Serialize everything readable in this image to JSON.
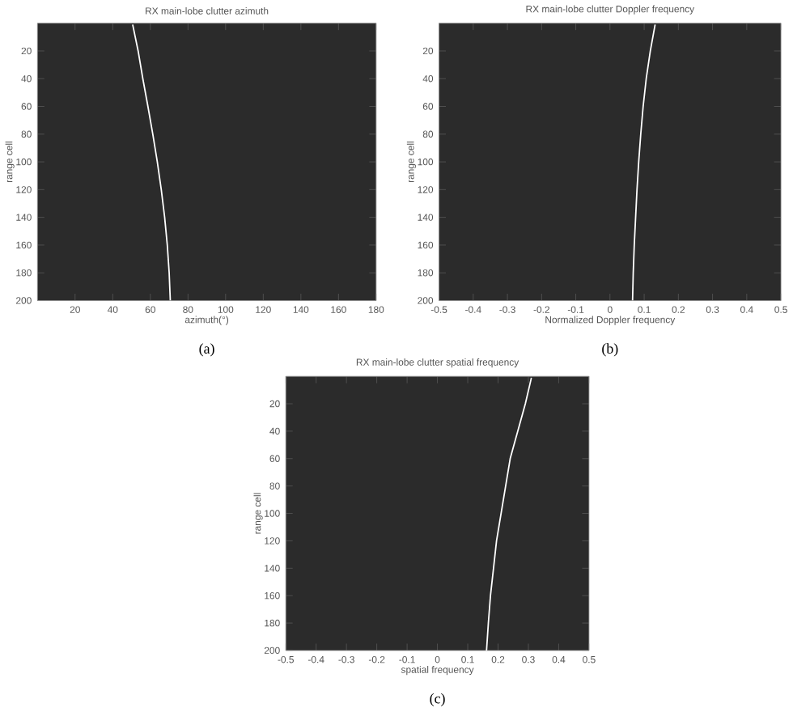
{
  "chart_data": [
    {
      "type": "line",
      "title": "RX main-lobe clutter azimuth",
      "xlabel": "azimuth(°)",
      "ylabel": "range cell",
      "annotations": [
        "(a)"
      ],
      "color": "#ffffff",
      "grid": false,
      "marker": "none",
      "x": [
        50.6,
        53.5,
        56,
        58.7,
        61.3,
        63.7,
        65.8,
        67.6,
        69,
        70,
        70.6
      ],
      "values": [
        1,
        20,
        40,
        60,
        80,
        100,
        120,
        140,
        160,
        180,
        200
      ],
      "xlim": [
        0,
        180
      ],
      "xticks": [
        20,
        40,
        60,
        80,
        100,
        120,
        140,
        160,
        180
      ],
      "ylim": [
        200,
        0
      ],
      "yticks": [
        20,
        40,
        60,
        80,
        100,
        120,
        140,
        160,
        180,
        200
      ]
    },
    {
      "type": "line",
      "title": "RX main-lobe clutter Doppler frequency",
      "xlabel": "Normalized Doppler frequency",
      "ylabel": "range cell",
      "annotations": [
        "(b)"
      ],
      "color": "#ffffff",
      "grid": false,
      "marker": "none",
      "x": [
        0.132,
        0.118,
        0.106,
        0.097,
        0.09,
        0.084,
        0.079,
        0.075,
        0.071,
        0.068,
        0.066
      ],
      "values": [
        1,
        20,
        40,
        60,
        80,
        100,
        120,
        140,
        160,
        180,
        200
      ],
      "xlim": [
        -0.5,
        0.5
      ],
      "xticks": [
        -0.5,
        -0.4,
        -0.3,
        -0.2,
        -0.1,
        0,
        0.1,
        0.2,
        0.3,
        0.4,
        0.5
      ],
      "ylim": [
        200,
        0
      ],
      "yticks": [
        20,
        40,
        60,
        80,
        100,
        120,
        140,
        160,
        180,
        200
      ]
    },
    {
      "type": "line",
      "title": "RX main-lobe clutter spatial frequency",
      "xlabel": "spatial frequency",
      "ylabel": "range cell",
      "annotations": [
        "(c)"
      ],
      "color": "#ffffff",
      "grid": false,
      "marker": "none",
      "x": [
        0.31,
        0.29,
        0.265,
        0.24,
        0.225,
        0.21,
        0.195,
        0.185,
        0.175,
        0.168,
        0.162
      ],
      "values": [
        1,
        20,
        40,
        60,
        80,
        100,
        120,
        140,
        160,
        180,
        200
      ],
      "xlim": [
        -0.5,
        0.5
      ],
      "xticks": [
        -0.5,
        -0.4,
        -0.3,
        -0.2,
        -0.1,
        0,
        0.1,
        0.2,
        0.3,
        0.4,
        0.5
      ],
      "ylim": [
        200,
        0
      ],
      "yticks": [
        20,
        40,
        60,
        80,
        100,
        120,
        140,
        160,
        180,
        200
      ]
    }
  ]
}
